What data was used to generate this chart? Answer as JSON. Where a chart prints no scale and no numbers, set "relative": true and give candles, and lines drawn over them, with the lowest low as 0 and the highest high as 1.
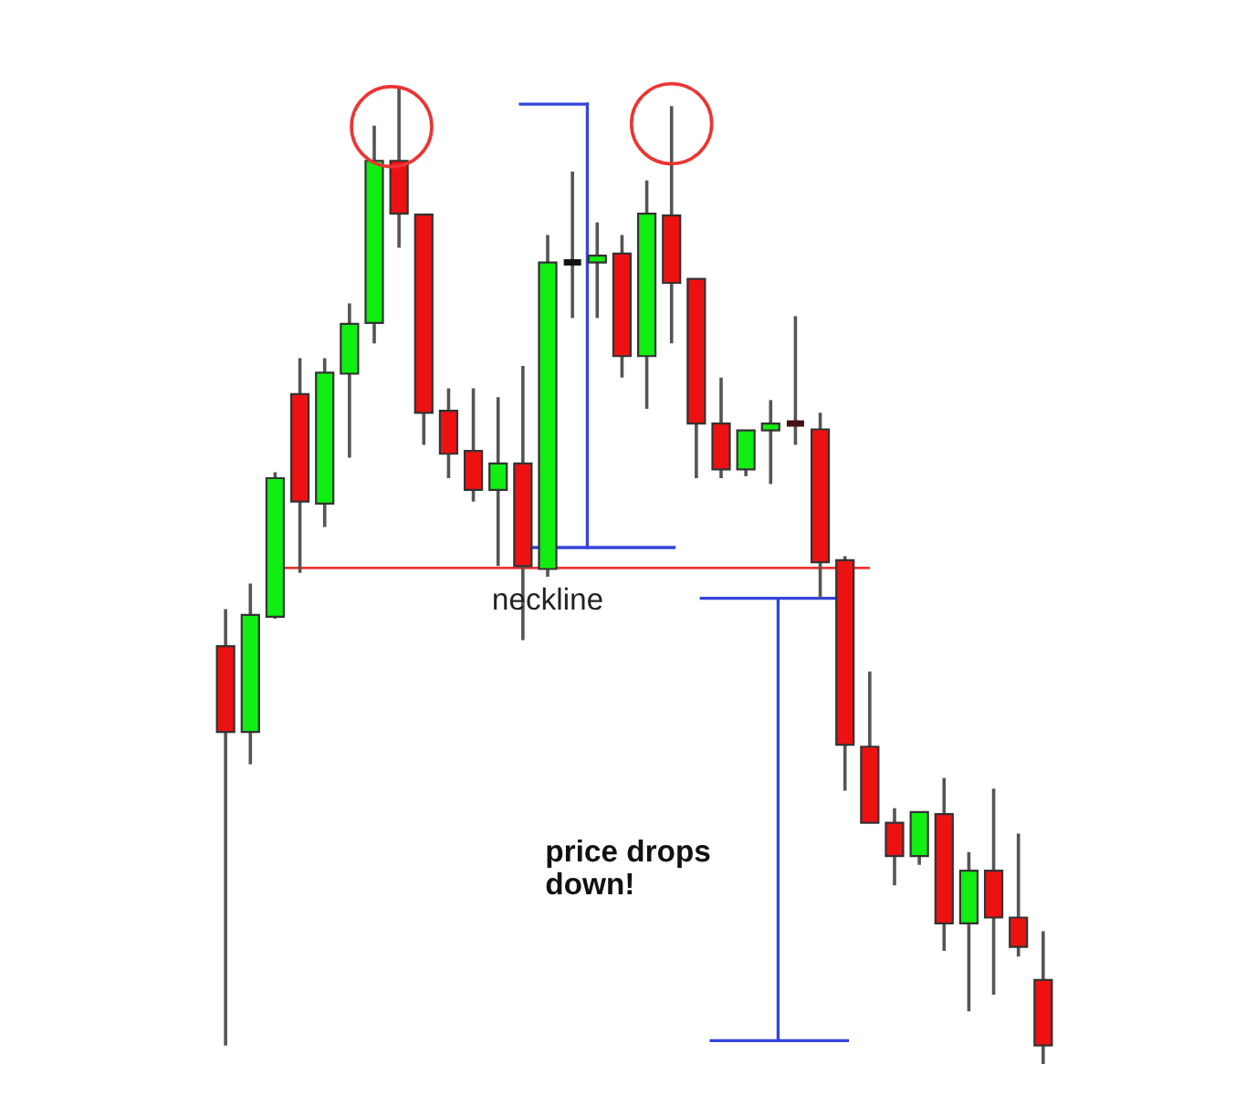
{
  "chart_data": {
    "type": "candlestick",
    "relative": true,
    "categories": [
      null,
      null,
      null,
      null,
      null,
      null,
      null,
      null,
      null,
      null,
      null,
      null,
      null,
      null,
      null,
      null,
      null,
      null,
      null,
      null,
      null,
      null,
      null,
      null,
      null,
      null,
      null,
      null,
      null,
      null,
      null,
      null,
      null,
      null
    ],
    "ohlc": [
      [
        0.428,
        0.466,
        0.019,
        0.34
      ],
      [
        0.34,
        0.492,
        0.307,
        0.46
      ],
      [
        0.458,
        0.606,
        0.456,
        0.6
      ],
      [
        0.686,
        0.723,
        0.503,
        0.576
      ],
      [
        0.574,
        0.723,
        0.55,
        0.708
      ],
      [
        0.707,
        0.779,
        0.621,
        0.758
      ],
      [
        0.759,
        0.961,
        0.738,
        0.925
      ],
      [
        0.925,
        1.0,
        0.836,
        0.871
      ],
      [
        0.87,
        0.871,
        0.634,
        0.667
      ],
      [
        0.669,
        0.692,
        0.6,
        0.625
      ],
      [
        0.628,
        0.692,
        0.576,
        0.588
      ],
      [
        0.588,
        0.683,
        0.51,
        0.615
      ],
      [
        0.615,
        0.715,
        0.434,
        0.51
      ],
      [
        0.507,
        0.849,
        0.499,
        0.821
      ],
      [
        0.821,
        0.914,
        0.764,
        0.821
      ],
      [
        0.821,
        0.862,
        0.764,
        0.828
      ],
      [
        0.83,
        0.849,
        0.703,
        0.725
      ],
      [
        0.725,
        0.905,
        0.671,
        0.871
      ],
      [
        0.869,
        0.981,
        0.738,
        0.8
      ],
      [
        0.804,
        0.804,
        0.6,
        0.656
      ],
      [
        0.656,
        0.703,
        0.6,
        0.609
      ],
      [
        0.609,
        0.649,
        0.602,
        0.649
      ],
      [
        0.649,
        0.68,
        0.594,
        0.656
      ],
      [
        0.656,
        0.766,
        0.634,
        0.656
      ],
      [
        0.65,
        0.667,
        0.477,
        0.514
      ],
      [
        0.516,
        0.52,
        0.28,
        0.327
      ],
      [
        0.325,
        0.402,
        0.247,
        0.247
      ],
      [
        0.247,
        0.262,
        0.183,
        0.213
      ],
      [
        0.213,
        0.258,
        0.204,
        0.258
      ],
      [
        0.256,
        0.293,
        0.116,
        0.144
      ],
      [
        0.144,
        0.217,
        0.054,
        0.198
      ],
      [
        0.198,
        0.282,
        0.071,
        0.15
      ],
      [
        0.15,
        0.236,
        0.11,
        0.12
      ],
      [
        0.086,
        0.136,
        0.0,
        0.019
      ]
    ],
    "colors": [
      "#ee1111",
      "#11ee11",
      "#11ee11",
      "#ee1111",
      "#11ee11",
      "#11ee11",
      "#11ee11",
      "#ee1111",
      "#ee1111",
      "#ee1111",
      "#ee1111",
      "#11ee11",
      "#ee1111",
      "#11ee11",
      "#111111",
      "#11ee11",
      "#ee1111",
      "#11ee11",
      "#ee1111",
      "#ee1111",
      "#ee1111",
      "#11ee11",
      "#11ee11",
      "#441111",
      "#ee1111",
      "#ee1111",
      "#ee1111",
      "#ee1111",
      "#11ee11",
      "#ee1111",
      "#11ee11",
      "#ee1111",
      "#ee1111",
      "#ee1111"
    ],
    "ref_lines": [
      {
        "axis": "y",
        "value": 0.508,
        "label": "neckline",
        "color": "#ee3333"
      }
    ],
    "annotations": [
      "price drops\ndown!"
    ]
  }
}
